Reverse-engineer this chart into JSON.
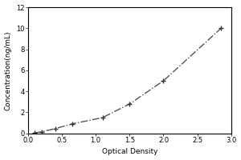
{
  "title": "",
  "xlabel": "Optical Density",
  "ylabel": "Concentration(ng/mL)",
  "x_data": [
    0.1,
    0.2,
    0.4,
    0.65,
    1.1,
    1.5,
    2.0,
    2.85
  ],
  "y_data": [
    0.05,
    0.15,
    0.45,
    0.9,
    1.5,
    2.8,
    5.0,
    10.0
  ],
  "xlim": [
    0,
    3
  ],
  "ylim": [
    0,
    12
  ],
  "xticks": [
    0,
    0.5,
    1.0,
    1.5,
    2.0,
    2.5,
    3.0
  ],
  "yticks": [
    0,
    2,
    4,
    6,
    8,
    10,
    12
  ],
  "line_color": "#555555",
  "marker": "+",
  "marker_color": "#333333",
  "marker_size": 5,
  "marker_edge_width": 1.0,
  "line_style": "-.",
  "line_width": 1.0,
  "bg_color": "#ffffff",
  "border_color": "#000000",
  "font_size_label": 6.5,
  "font_size_tick": 6
}
